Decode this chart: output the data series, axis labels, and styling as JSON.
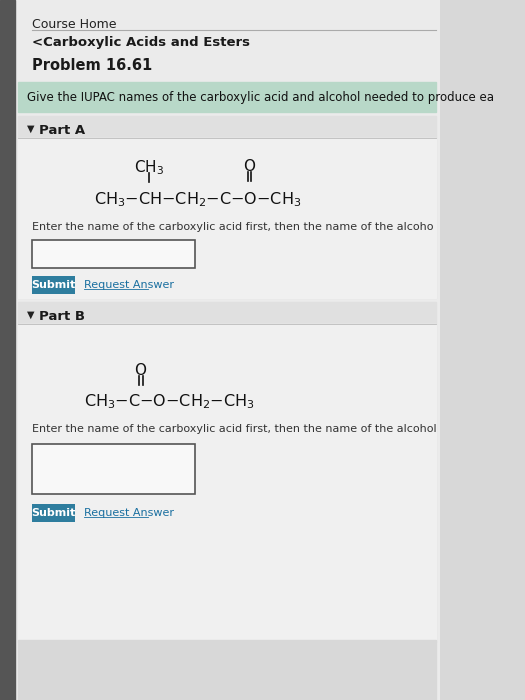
{
  "bg_color": "#d8d8d8",
  "page_bg": "#ebebeb",
  "white_bg": "#ffffff",
  "green_bg": "#b8d8c8",
  "teal_btn": "#2e7d9e",
  "left_bar_color": "#555555",
  "title_course_home": "Course Home",
  "title_section": "<Carboxylic Acids and Esters",
  "title_problem": "Problem 16.61",
  "question_text": "Give the IUPAC names of the carboxylic acid and alcohol needed to produce ea",
  "part_a_label": "Part A",
  "part_b_label": "Part B",
  "instruction_a": "Enter the name of the carboxylic acid first, then the name of the alcoho",
  "instruction_b": "Enter the name of the carboxylic acid first, then the name of the alcohol",
  "submit_text": "Submit",
  "request_text": "Request Answer"
}
